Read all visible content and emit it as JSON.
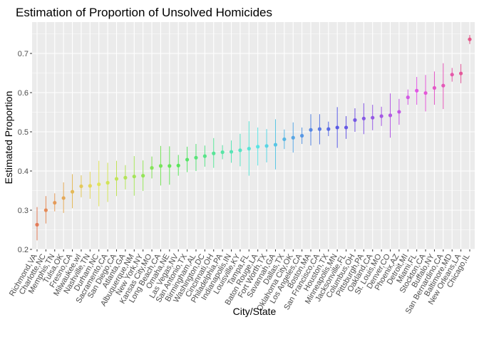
{
  "chart_data": {
    "type": "scatter",
    "title": "Estimation of Proportion of Unsolved Homicides",
    "xlabel": "City/State",
    "ylabel": "Estimated Proportion",
    "ylim": [
      0.2,
      0.78
    ],
    "yticks": [
      0.2,
      0.3,
      0.4,
      0.5,
      0.6,
      0.7
    ],
    "ytick_labels": [
      "0.2",
      "0.3",
      "0.4",
      "0.5",
      "0.6",
      "0.7"
    ],
    "grid": true,
    "error_bars": true,
    "points": [
      {
        "city": "Richmond,VA",
        "estimate": 0.263,
        "low": 0.223,
        "high": 0.308
      },
      {
        "city": "Charlotte,NC",
        "estimate": 0.3,
        "low": 0.266,
        "high": 0.336
      },
      {
        "city": "Memphis,TN",
        "estimate": 0.319,
        "low": 0.297,
        "high": 0.343
      },
      {
        "city": "Tulsa,OK",
        "estimate": 0.331,
        "low": 0.293,
        "high": 0.371
      },
      {
        "city": "Fresno,CA",
        "estimate": 0.347,
        "low": 0.305,
        "high": 0.392
      },
      {
        "city": "Milwaukee,wI",
        "estimate": 0.361,
        "low": 0.333,
        "high": 0.389
      },
      {
        "city": "Nashville,TN",
        "estimate": 0.362,
        "low": 0.329,
        "high": 0.398
      },
      {
        "city": "Durham,NC",
        "estimate": 0.366,
        "low": 0.31,
        "high": 0.426
      },
      {
        "city": "Sacramento,CA",
        "estimate": 0.37,
        "low": 0.321,
        "high": 0.421
      },
      {
        "city": "San Diego,CA",
        "estimate": 0.38,
        "low": 0.336,
        "high": 0.426
      },
      {
        "city": "Atlanta,GA",
        "estimate": 0.383,
        "low": 0.353,
        "high": 0.415
      },
      {
        "city": "Albuquerque,NM",
        "estimate": 0.386,
        "low": 0.337,
        "high": 0.438
      },
      {
        "city": "New York,NY",
        "estimate": 0.388,
        "low": 0.349,
        "high": 0.427
      },
      {
        "city": "Kansas City,MO",
        "estimate": 0.408,
        "low": 0.381,
        "high": 0.437
      },
      {
        "city": "Long Beach,CA",
        "estimate": 0.413,
        "low": 0.363,
        "high": 0.464
      },
      {
        "city": "Omaha,NE",
        "estimate": 0.413,
        "low": 0.365,
        "high": 0.463
      },
      {
        "city": "Las Vegas,NV",
        "estimate": 0.414,
        "low": 0.388,
        "high": 0.441
      },
      {
        "city": "San Antonio,TX",
        "estimate": 0.429,
        "low": 0.397,
        "high": 0.462
      },
      {
        "city": "Birmingham,AL",
        "estimate": 0.434,
        "low": 0.4,
        "high": 0.469
      },
      {
        "city": "Washington,DC",
        "estimate": 0.438,
        "low": 0.411,
        "high": 0.465
      },
      {
        "city": "Cincinnati,OH",
        "estimate": 0.445,
        "low": 0.408,
        "high": 0.484
      },
      {
        "city": "Philadelphia,PA",
        "estimate": 0.448,
        "low": 0.43,
        "high": 0.466
      },
      {
        "city": "Indianapolis,IN",
        "estimate": 0.449,
        "low": 0.421,
        "high": 0.478
      },
      {
        "city": "Louisville,KY",
        "estimate": 0.453,
        "low": 0.412,
        "high": 0.495
      },
      {
        "city": "Tampa,FL",
        "estimate": 0.457,
        "low": 0.388,
        "high": 0.527
      },
      {
        "city": "Baton Rouge,LA",
        "estimate": 0.462,
        "low": 0.414,
        "high": 0.511
      },
      {
        "city": "Fort Worth,TX",
        "estimate": 0.464,
        "low": 0.422,
        "high": 0.507
      },
      {
        "city": "Savannah,GA",
        "estimate": 0.467,
        "low": 0.404,
        "high": 0.532
      },
      {
        "city": "Dallas,TX",
        "estimate": 0.481,
        "low": 0.456,
        "high": 0.506
      },
      {
        "city": "Oklahoma City,OK",
        "estimate": 0.485,
        "low": 0.447,
        "high": 0.524
      },
      {
        "city": "Los Angeles,CA",
        "estimate": 0.49,
        "low": 0.469,
        "high": 0.511
      },
      {
        "city": "Boston,MA",
        "estimate": 0.505,
        "low": 0.465,
        "high": 0.545
      },
      {
        "city": "San Francisco,CA",
        "estimate": 0.507,
        "low": 0.468,
        "high": 0.545
      },
      {
        "city": "Houston,TX",
        "estimate": 0.507,
        "low": 0.489,
        "high": 0.526
      },
      {
        "city": "Minneapolis,MN",
        "estimate": 0.511,
        "low": 0.459,
        "high": 0.563
      },
      {
        "city": "Jacksonville,FL",
        "estimate": 0.511,
        "low": 0.482,
        "high": 0.54
      },
      {
        "city": "Columbus,OH",
        "estimate": 0.53,
        "low": 0.5,
        "high": 0.56
      },
      {
        "city": "Pittsburgh,PA",
        "estimate": 0.534,
        "low": 0.494,
        "high": 0.573
      },
      {
        "city": "Oakland,CA",
        "estimate": 0.536,
        "low": 0.504,
        "high": 0.569
      },
      {
        "city": "St. Louis,MO",
        "estimate": 0.54,
        "low": 0.515,
        "high": 0.564
      },
      {
        "city": "Denver,CO",
        "estimate": 0.542,
        "low": 0.485,
        "high": 0.598
      },
      {
        "city": "Phoenix,AZ",
        "estimate": 0.551,
        "low": 0.518,
        "high": 0.584
      },
      {
        "city": "Detroit,MI",
        "estimate": 0.588,
        "low": 0.569,
        "high": 0.608
      },
      {
        "city": "Miami,FL",
        "estimate": 0.605,
        "low": 0.569,
        "high": 0.64
      },
      {
        "city": "Stockton,CA",
        "estimate": 0.599,
        "low": 0.552,
        "high": 0.645
      },
      {
        "city": "Buffalo,NY",
        "estimate": 0.612,
        "low": 0.569,
        "high": 0.654
      },
      {
        "city": "San Bernardino,CA",
        "estimate": 0.618,
        "low": 0.558,
        "high": 0.675
      },
      {
        "city": "Baltimore,MD",
        "estimate": 0.646,
        "low": 0.628,
        "high": 0.663
      },
      {
        "city": "New Orleans,LA",
        "estimate": 0.649,
        "low": 0.624,
        "high": 0.673
      },
      {
        "city": "Chicago,IL",
        "estimate": 0.736,
        "low": 0.724,
        "high": 0.747
      }
    ]
  }
}
